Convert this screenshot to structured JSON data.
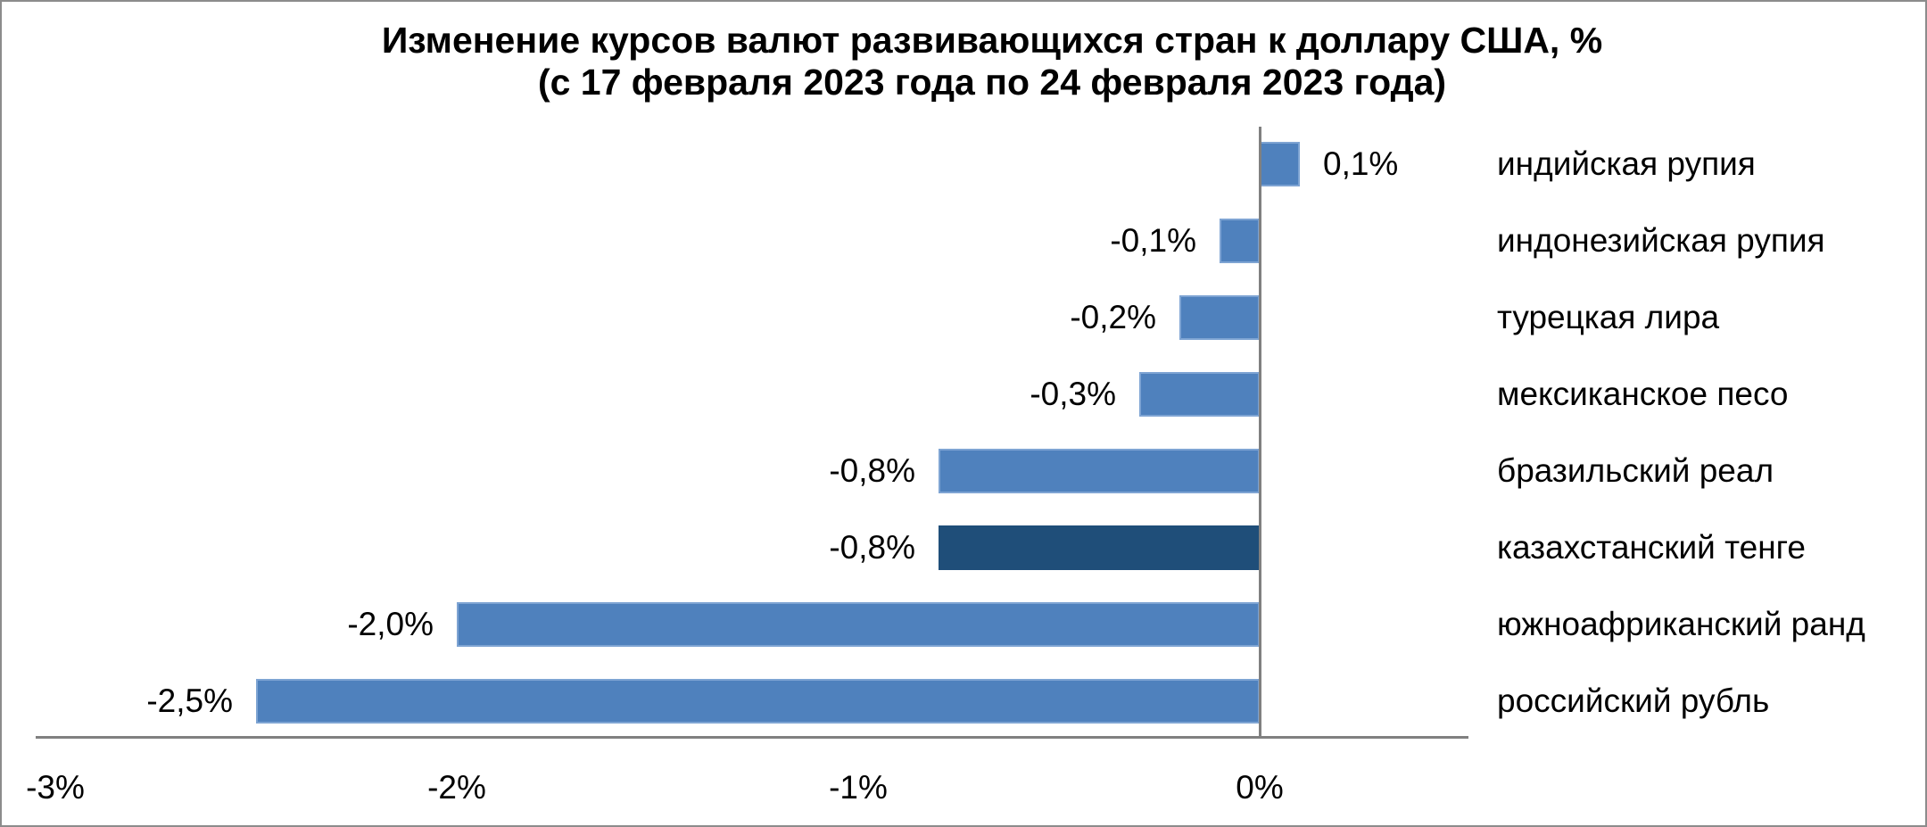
{
  "title": {
    "line1": "Изменение курсов валют развивающихся стран к доллару США, %",
    "line2": "(с 17 февраля 2023 года по 24 февраля 2023 года)"
  },
  "chart_data": {
    "type": "bar",
    "orientation": "horizontal",
    "title": "Изменение курсов валют развивающихся стран к доллару США, % (с 17 февраля 2023 года по 24 февраля 2023 года)",
    "categories": [
      "индийская рупия",
      "индонезийская рупия",
      "турецкая лира",
      "мексиканское песо",
      "бразильский реал",
      "казахстанский тенге",
      "южноафриканский ранд",
      "российский рубль"
    ],
    "values": [
      0.1,
      -0.1,
      -0.2,
      -0.3,
      -0.8,
      -0.8,
      -2.0,
      -2.5
    ],
    "value_labels": [
      "0,1%",
      "-0,1%",
      "-0,2%",
      "-0,3%",
      "-0,8%",
      "-0,8%",
      "-2,0%",
      "-2,5%"
    ],
    "highlight_index": 5,
    "x_ticks": [
      {
        "value": -3,
        "label": "-3%"
      },
      {
        "value": -2,
        "label": "-2%"
      },
      {
        "value": -1,
        "label": "-1%"
      },
      {
        "value": 0,
        "label": "0%"
      }
    ],
    "xlim": [
      -3.05,
      0.52
    ],
    "grid": false,
    "legend": "none",
    "xlabel": "",
    "ylabel": "",
    "colors": {
      "bar": "#4F81BD",
      "bar_border": "#7EA4D3",
      "bar_highlight": "#1F4E79",
      "bar_highlight_border": "#1F4E79",
      "axis": "#808080",
      "text": "#000000"
    }
  }
}
